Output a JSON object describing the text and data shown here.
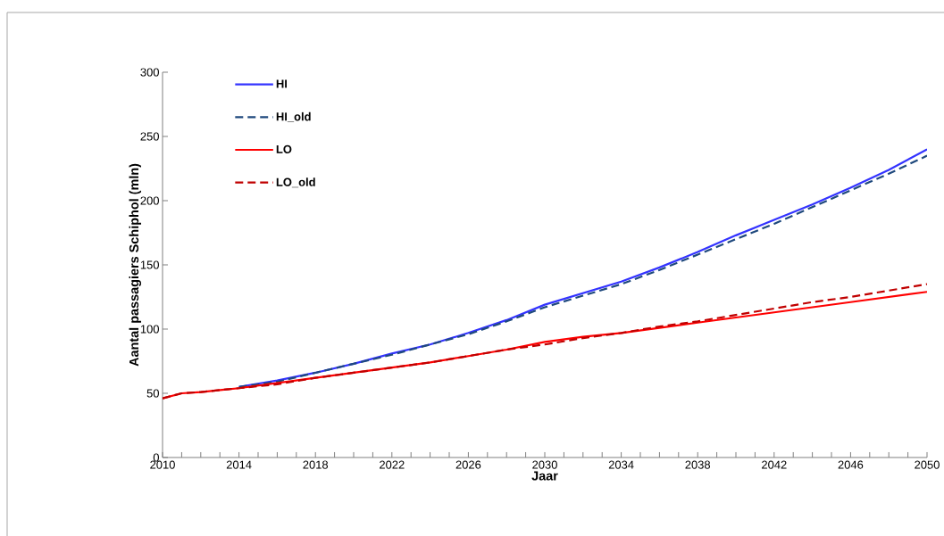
{
  "chart_data": {
    "type": "line",
    "xlabel": "Jaar",
    "ylabel": "Aantal passagiers Schiphol (mln)",
    "x": [
      2010,
      2011,
      2012,
      2014,
      2016,
      2018,
      2020,
      2022,
      2024,
      2026,
      2028,
      2030,
      2032,
      2034,
      2036,
      2038,
      2040,
      2042,
      2044,
      2046,
      2048,
      2050
    ],
    "series": [
      {
        "name": "HI",
        "color": "#3333ff",
        "line_style": "solid",
        "values": [
          null,
          null,
          null,
          55,
          60,
          66,
          73,
          81,
          88,
          97,
          107,
          119,
          128,
          137,
          148,
          160,
          173,
          185,
          197,
          210,
          224,
          240
        ]
      },
      {
        "name": "HI_old",
        "color": "#1f497d",
        "line_style": "dashed",
        "values": [
          null,
          null,
          null,
          55,
          59,
          66,
          73,
          80,
          88,
          96,
          106,
          117,
          126,
          135,
          146,
          158,
          170,
          182,
          195,
          208,
          221,
          235
        ]
      },
      {
        "name": "LO",
        "color": "#ff0000",
        "line_style": "solid",
        "values": [
          46,
          50,
          51,
          54,
          58,
          62,
          66,
          70,
          74,
          79,
          84,
          90,
          94,
          97,
          101,
          105,
          109,
          113,
          117,
          121,
          125,
          129
        ]
      },
      {
        "name": "LO_old",
        "color": "#c00000",
        "line_style": "dashed",
        "values": [
          46,
          50,
          51,
          54,
          57,
          62,
          66,
          70,
          74,
          79,
          84,
          88,
          93,
          97,
          102,
          106,
          111,
          116,
          121,
          125,
          130,
          135
        ]
      }
    ],
    "xlim": [
      2010,
      2050
    ],
    "xticks": [
      2010,
      2014,
      2018,
      2022,
      2026,
      2030,
      2034,
      2038,
      2042,
      2046,
      2050
    ],
    "ylim": [
      0,
      300
    ],
    "yticks": [
      0,
      50,
      100,
      150,
      200,
      250,
      300
    ],
    "grid": false,
    "legend": "top left",
    "marker": "none"
  }
}
